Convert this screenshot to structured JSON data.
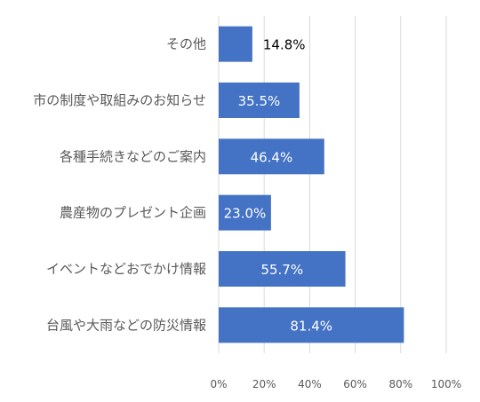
{
  "chart_data": {
    "type": "bar",
    "orientation": "horizontal",
    "categories": [
      "その他",
      "市の制度や取組みのお知らせ",
      "各種手続きなどのご案内",
      "農産物のプレゼント企画",
      "イベントなどおでかけ情報",
      "台風や大雨などの防災情報"
    ],
    "values": [
      14.8,
      35.5,
      46.4,
      23.0,
      55.7,
      81.4
    ],
    "data_labels": [
      "14.8%",
      "35.5%",
      "46.4%",
      "23.0%",
      "55.7%",
      "81.4%"
    ],
    "xlim": [
      0,
      100
    ],
    "x_ticks": [
      "0%",
      "20%",
      "40%",
      "60%",
      "80%",
      "100%"
    ],
    "title": "",
    "xlabel": "",
    "ylabel": "",
    "grid": true,
    "legend": "none",
    "colors": {
      "bar": "#4472C4",
      "grid": "#D9D9D9",
      "label_inside": "#FFFFFF",
      "label_outside": "#000000",
      "axis_text": "#595959"
    }
  }
}
